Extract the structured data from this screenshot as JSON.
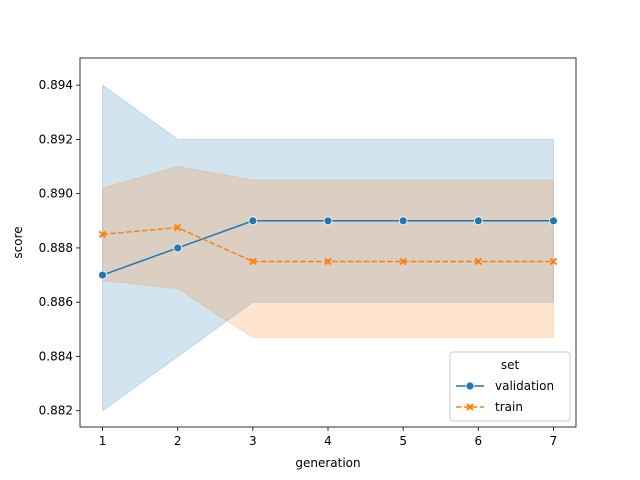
{
  "chart_data": {
    "type": "line",
    "title": "",
    "xlabel": "generation",
    "ylabel": "score",
    "x": [
      1,
      2,
      3,
      4,
      5,
      6,
      7
    ],
    "xlim": [
      0.7,
      7.3
    ],
    "ylim": [
      0.8814,
      0.895
    ],
    "xticks": [
      1,
      2,
      3,
      4,
      5,
      6,
      7
    ],
    "yticks": [
      0.882,
      0.884,
      0.886,
      0.888,
      0.89,
      0.892,
      0.894
    ],
    "grid": false,
    "legend": {
      "title": "set",
      "placement": "lower-right",
      "entries": [
        "validation",
        "train"
      ]
    },
    "series": [
      {
        "name": "validation",
        "color": "#1f77b4",
        "marker": "circle",
        "linestyle": "solid",
        "values": [
          0.887,
          0.888,
          0.889,
          0.889,
          0.889,
          0.889,
          0.889
        ],
        "band_low": [
          0.882,
          0.884,
          0.886,
          0.886,
          0.886,
          0.886,
          0.886
        ],
        "band_high": [
          0.894,
          0.892,
          0.892,
          0.892,
          0.892,
          0.892,
          0.892
        ]
      },
      {
        "name": "train",
        "color": "#ff7f0e",
        "marker": "x",
        "linestyle": "dashed",
        "values": [
          0.8885,
          0.88875,
          0.8875,
          0.8875,
          0.8875,
          0.8875,
          0.8875
        ],
        "band_low": [
          0.8868,
          0.8865,
          0.8847,
          0.8847,
          0.8847,
          0.8847,
          0.8847
        ],
        "band_high": [
          0.8902,
          0.891,
          0.8905,
          0.8905,
          0.8905,
          0.8905,
          0.8905
        ]
      }
    ]
  }
}
